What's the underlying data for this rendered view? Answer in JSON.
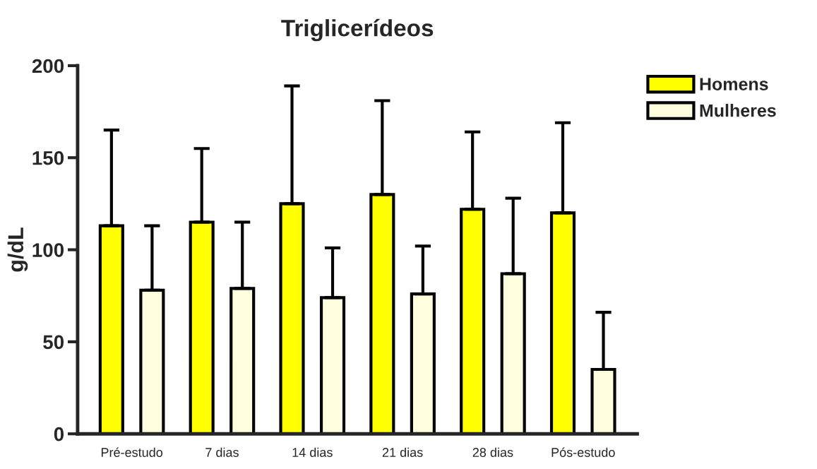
{
  "chart_data": {
    "type": "bar",
    "title": "Triglicerídeos",
    "ylabel": "g/dL",
    "categories": [
      "Pré-estudo",
      "7 dias",
      "14 dias",
      "21 dias",
      "28 dias",
      "Pós-estudo"
    ],
    "series": [
      {
        "name": "Homens",
        "color": "#ffff00",
        "values": [
          113,
          115,
          125,
          130,
          122,
          120
        ],
        "errors": [
          [
            113,
            165
          ],
          [
            115,
            155
          ],
          [
            125,
            189
          ],
          [
            130,
            181
          ],
          [
            122,
            164
          ],
          [
            120,
            169
          ]
        ]
      },
      {
        "name": "Mulheres",
        "color": "#ffffe0",
        "values": [
          78,
          79,
          74,
          76,
          87,
          35
        ],
        "errors": [
          [
            78,
            113
          ],
          [
            79,
            115
          ],
          [
            74,
            101
          ],
          [
            76,
            102
          ],
          [
            87,
            128
          ],
          [
            35,
            66
          ]
        ]
      }
    ],
    "ylim": [
      0,
      200
    ],
    "yticks": [
      0,
      50,
      100,
      150,
      200
    ],
    "grid": false,
    "legend": "top right"
  }
}
